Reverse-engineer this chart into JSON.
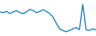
{
  "values": [
    0.72,
    0.7,
    0.73,
    0.68,
    0.72,
    0.75,
    0.7,
    0.68,
    0.72,
    0.78,
    0.75,
    0.7,
    0.73,
    0.77,
    0.73,
    0.68,
    0.6,
    0.45,
    0.32,
    0.28,
    0.25,
    0.28,
    0.32,
    0.35,
    0.3,
    0.9,
    0.3,
    0.28,
    0.32,
    0.3
  ],
  "line_color": "#1a82c4",
  "line_width": 1.0,
  "bg_color": "#ffffff",
  "ylim_min": 0.15,
  "ylim_max": 1.0
}
